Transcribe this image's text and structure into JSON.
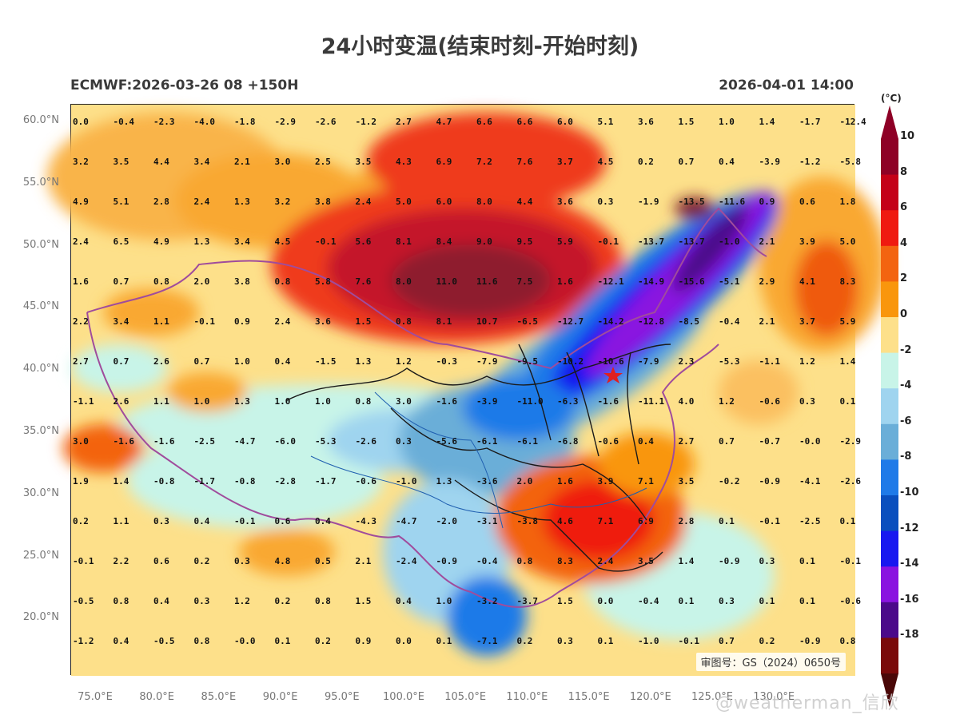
{
  "title": "24小时变温(结束时刻-开始时刻)",
  "subtitle_left": "ECMWF:2026-03-26 08 +150H",
  "subtitle_right": "2026-04-01 14:00",
  "approval_number": "审图号：GS（2024）0650号",
  "watermark": "@weatherman_信欣",
  "colorbar": {
    "unit": "(°C)",
    "labels": [
      "10",
      "8",
      "6",
      "4",
      "2",
      "0",
      "-2",
      "-4",
      "-6",
      "-8",
      "-10",
      "-12",
      "-14",
      "-16",
      "-18"
    ],
    "colors": [
      "#8e0026",
      "#c40018",
      "#ef1a10",
      "#f36410",
      "#f9960c",
      "#fde08a",
      "#c8f4e8",
      "#9fd4ef",
      "#6aaed8",
      "#1f7ae8",
      "#0a4fbe",
      "#1818f0",
      "#8a14e0",
      "#4b0a8a",
      "#7a0a0a"
    ]
  },
  "lat_ticks": [
    "60.0°N",
    "55.0°N",
    "50.0°N",
    "45.0°N",
    "40.0°N",
    "35.0°N",
    "30.0°N",
    "25.0°N",
    "20.0°N"
  ],
  "lon_ticks": [
    "75.0°E",
    "80.0°E",
    "85.0°E",
    "90.0°E",
    "95.0°E",
    "100.0°E",
    "105.0°E",
    "110.0°E",
    "115.0°E",
    "120.0°E",
    "125.0°E",
    "130.0°E"
  ],
  "grid_values": [
    [
      "0.0",
      "-0.4",
      "-2.3",
      "-4.0",
      "-1.8",
      "-2.9",
      "-2.6",
      "-1.2",
      "2.7",
      "4.7",
      "6.6",
      "6.6",
      "6.0",
      "5.1",
      "3.6",
      "1.5",
      "1.0",
      "1.4",
      "-1.7",
      "-12.4"
    ],
    [
      "3.2",
      "3.5",
      "4.4",
      "3.4",
      "2.1",
      "3.0",
      "2.5",
      "3.5",
      "4.3",
      "6.9",
      "7.2",
      "7.6",
      "3.7",
      "4.5",
      "0.2",
      "0.7",
      "0.4",
      "-3.9",
      "-1.2",
      "-5.8"
    ],
    [
      "4.9",
      "5.1",
      "2.8",
      "2.4",
      "1.3",
      "3.2",
      "3.8",
      "2.4",
      "5.0",
      "6.0",
      "8.0",
      "4.4",
      "3.6",
      "0.3",
      "-1.9",
      "-13.5",
      "-11.6",
      "0.9",
      "0.6",
      "1.8"
    ],
    [
      "2.4",
      "6.5",
      "4.9",
      "1.3",
      "3.4",
      "4.5",
      "-0.1",
      "5.6",
      "8.1",
      "8.4",
      "9.0",
      "9.5",
      "5.9",
      "-0.1",
      "-13.7",
      "-13.7",
      "-1.0",
      "2.1",
      "3.9",
      "5.0"
    ],
    [
      "1.6",
      "0.7",
      "0.8",
      "2.0",
      "3.8",
      "0.8",
      "5.8",
      "7.6",
      "8.0",
      "11.0",
      "11.6",
      "7.5",
      "1.6",
      "-12.1",
      "-14.9",
      "-15.6",
      "-5.1",
      "2.9",
      "4.1",
      "8.3"
    ],
    [
      "2.2",
      "3.4",
      "1.1",
      "-0.1",
      "0.9",
      "2.4",
      "3.6",
      "1.5",
      "0.8",
      "8.1",
      "10.7",
      "-6.5",
      "-12.7",
      "-14.2",
      "-12.8",
      "-8.5",
      "-0.4",
      "2.1",
      "3.7",
      "5.9"
    ],
    [
      "2.7",
      "0.7",
      "2.6",
      "0.7",
      "1.0",
      "0.4",
      "-1.5",
      "1.3",
      "1.2",
      "-0.3",
      "-7.9",
      "-9.5",
      "-10.2",
      "-10.6",
      "-7.9",
      "2.3",
      "-5.3",
      "-1.1",
      "1.2",
      "1.4"
    ],
    [
      "-1.1",
      "2.6",
      "1.1",
      "1.0",
      "1.3",
      "1.0",
      "1.0",
      "0.8",
      "3.0",
      "-1.6",
      "-3.9",
      "-11.0",
      "-6.3",
      "-1.6",
      "-11.1",
      "4.0",
      "1.2",
      "-0.6",
      "0.3",
      "0.1"
    ],
    [
      "3.0",
      "-1.6",
      "-1.6",
      "-2.5",
      "-4.7",
      "-6.0",
      "-5.3",
      "-2.6",
      "0.3",
      "-5.6",
      "-6.1",
      "-6.1",
      "-6.8",
      "-0.6",
      "0.4",
      "2.7",
      "0.7",
      "-0.7",
      "-0.0",
      "-2.9"
    ],
    [
      "1.9",
      "1.4",
      "-0.8",
      "-1.7",
      "-0.8",
      "-2.8",
      "-1.7",
      "-0.6",
      "-1.0",
      "1.3",
      "-3.6",
      "2.0",
      "1.6",
      "3.9",
      "7.1",
      "3.5",
      "-0.2",
      "-0.9",
      "-4.1",
      "-2.6"
    ],
    [
      "0.2",
      "1.1",
      "0.3",
      "0.4",
      "-0.1",
      "0.6",
      "0.4",
      "-4.3",
      "-4.7",
      "-2.0",
      "-3.1",
      "-3.8",
      "4.6",
      "7.1",
      "6.9",
      "2.8",
      "0.1",
      "-0.1",
      "-2.5",
      "0.1"
    ],
    [
      "-0.1",
      "2.2",
      "0.6",
      "0.2",
      "0.3",
      "4.8",
      "0.5",
      "2.1",
      "-2.4",
      "-0.9",
      "-0.4",
      "0.8",
      "8.3",
      "2.4",
      "3.5",
      "1.4",
      "-0.9",
      "0.3",
      "0.1",
      "-0.1"
    ],
    [
      "-0.5",
      "0.8",
      "0.4",
      "0.3",
      "1.2",
      "0.2",
      "0.8",
      "1.5",
      "0.4",
      "1.0",
      "-3.2",
      "-3.7",
      "1.5",
      "0.0",
      "-0.4",
      "0.1",
      "0.3",
      "0.1",
      "0.1",
      "-0.6"
    ],
    [
      "-1.2",
      "0.4",
      "-0.5",
      "0.8",
      "-0.0",
      "0.1",
      "0.2",
      "0.9",
      "0.0",
      "0.1",
      "-7.1",
      "0.2",
      "0.3",
      "0.1",
      "-1.0",
      "-0.1",
      "0.7",
      "0.2",
      "-0.9",
      "0.8"
    ]
  ]
}
